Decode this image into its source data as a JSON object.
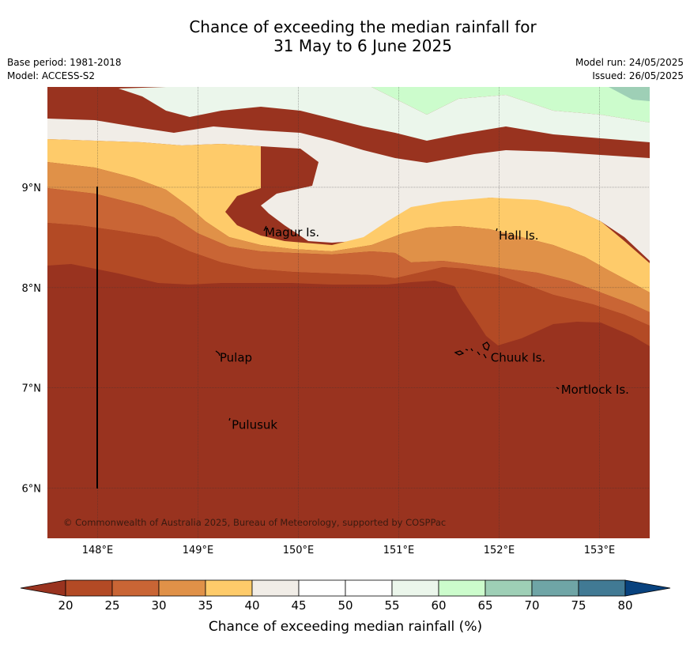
{
  "header": {
    "title_line1": "Chance of exceeding the median rainfall for",
    "title_line2": "31 May to 6 June 2025",
    "base_period": "Base period: 1981-2018",
    "model": "Model: ACCESS-S2",
    "model_run": "Model run: 24/05/2025",
    "issued": "Issued: 26/05/2025"
  },
  "map": {
    "lon_range": [
      147.5,
      153.5
    ],
    "lat_range": [
      5.5,
      10.0
    ],
    "lon_ticks": [
      {
        "value": 148,
        "label": "148°E"
      },
      {
        "value": 149,
        "label": "149°E"
      },
      {
        "value": 150,
        "label": "150°E"
      },
      {
        "value": 151,
        "label": "151°E"
      },
      {
        "value": 152,
        "label": "152°E"
      },
      {
        "value": 153,
        "label": "153°E"
      }
    ],
    "lat_ticks": [
      {
        "value": 9,
        "label": "9°N"
      },
      {
        "value": 8,
        "label": "8°N"
      },
      {
        "value": 7,
        "label": "7°N"
      },
      {
        "value": 6,
        "label": "6°N"
      }
    ],
    "places": [
      {
        "name": "Magur Is.",
        "lon": 149.65,
        "lat": 8.55
      },
      {
        "name": "Hall Is.",
        "lon": 151.98,
        "lat": 8.52
      },
      {
        "name": "Pulap",
        "lon": 149.2,
        "lat": 7.3
      },
      {
        "name": "Chuuk Is.",
        "lon": 151.9,
        "lat": 7.3
      },
      {
        "name": "Mortlock Is.",
        "lon": 152.6,
        "lat": 6.98
      },
      {
        "name": "Pulusuk",
        "lon": 149.32,
        "lat": 6.63
      }
    ],
    "copyright": "© Commonwealth of Australia 2025, Bureau of Meteorology, supported by COSPPac",
    "background_color": "#99331f"
  },
  "colorbar": {
    "label": "Chance of exceeding median rainfall (%)",
    "ticks": [
      "20",
      "25",
      "30",
      "35",
      "40",
      "45",
      "50",
      "55",
      "60",
      "65",
      "70",
      "75",
      "80"
    ],
    "below_color": "#99331f",
    "above_color": "#08427e",
    "colors": [
      "#b34a25",
      "#c96535",
      "#e09148",
      "#fecb6a",
      "#f1ede7",
      "#ffffff",
      "#ffffff",
      "#ebf6eb",
      "#ccfccc",
      "#9ecfb6",
      "#6fa5a6",
      "#417a94"
    ]
  }
}
